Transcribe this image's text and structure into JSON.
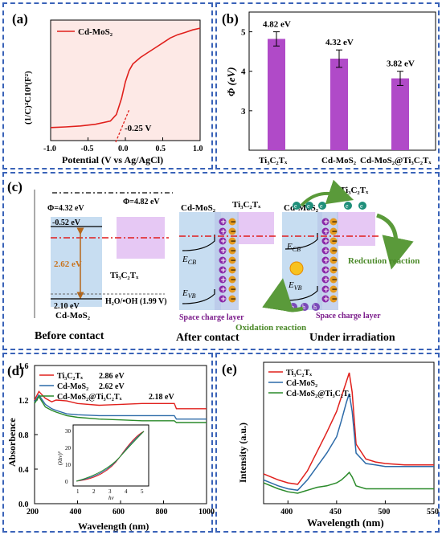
{
  "panel_a": {
    "letter": "(a)",
    "legend": "Cd-MoS₂",
    "ylabel": "(1/C)²C10⁹(F²)",
    "xlabel": "Potential (V vs Ag/AgCl)",
    "annotation": "-0.25 V",
    "xticks": [
      "-1.0",
      "-0.5",
      "0.0",
      "0.5",
      "1.0"
    ],
    "line_color": "#e0201c",
    "fill_color": "#fde9e6"
  },
  "panel_b": {
    "letter": "(b)",
    "ylabel": "Φ (eV)",
    "yticks": [
      "3",
      "4",
      "5"
    ],
    "bar_color": "#b04ac8",
    "value_labels": [
      "4.82 eV",
      "4.32 eV",
      "3.82 eV"
    ],
    "categories": [
      "Ti₃C₂Tₓ",
      "Cd-MoS₂",
      "Cd-MoS₂@Ti₃C₂Tₓ"
    ]
  },
  "panel_c": {
    "letter": "(c)",
    "phi1": "Φ=4.32 eV",
    "phi2": "Φ=4.82 eV",
    "cb": "-0.52 eV",
    "gap": "2.62 eV",
    "vb": "2.10 eV",
    "redox": "H₂O/•OH (1.99 V)",
    "mat1": "Cd-MoS₂",
    "mat2": "Ti₃C₂Tₓ",
    "ecb": "E",
    "ecb_sub": "CB",
    "evb": "E",
    "evb_sub": "VB",
    "scl": "Space charge layer",
    "reduction": "Redcution reaction",
    "oxidation": "Oxidation reaction",
    "stage1": "Before contact",
    "stage2": "After contact",
    "stage3": "Under irradiation",
    "h": "h",
    "e": "e"
  },
  "panel_d": {
    "letter": "(d)",
    "ylabel": "Absorbence",
    "xlabel": "Wavelength (nm)",
    "yticks": [
      "0.0",
      "0.4",
      "0.8",
      "1.2",
      "1.6"
    ],
    "xticks": [
      "200",
      "400",
      "600",
      "800",
      "1000"
    ],
    "legend": [
      {
        "name": "Ti₃C₂Tₓ",
        "gap": "2.86 eV",
        "color": "#e0201c"
      },
      {
        "name": "Cd-MoS₂",
        "gap": "2.62 eV",
        "color": "#2c6aa8"
      },
      {
        "name": "Cd-MoS₂@Ti₃C₂Tₓ",
        "gap": "2.18 eV",
        "color": "#2a8a2a"
      }
    ],
    "inset_ylabel": "(λhν)²",
    "inset_xlabel": "hν",
    "inset_yticks": [
      "0",
      "10",
      "20",
      "30"
    ],
    "inset_xticks": [
      "1",
      "2",
      "3",
      "4",
      "5"
    ]
  },
  "panel_e": {
    "letter": "(e)",
    "ylabel": "Intensity (a.u.)",
    "xlabel": "Wavelength (nm)",
    "xticks": [
      "400",
      "450",
      "500",
      "550"
    ],
    "legend": [
      {
        "name": "Ti₃C₂Tₓ",
        "color": "#e0201c"
      },
      {
        "name": "Cd-MoS₂",
        "color": "#2c6aa8"
      },
      {
        "name": "Cd-MoS₂@Ti₃C₂Tₓ",
        "color": "#2a8a2a"
      }
    ]
  },
  "chart_data": [
    {
      "type": "line",
      "title": "",
      "xlabel": "Potential (V vs Ag/AgCl)",
      "ylabel": "(1/C)²C10⁹(F²)",
      "xlim": [
        -1.0,
        1.0
      ],
      "series": [
        {
          "name": "Cd-MoS₂",
          "x": [
            -1.0,
            -0.8,
            -0.6,
            -0.4,
            -0.2,
            -0.12,
            -0.05,
            0.0,
            0.05,
            0.1,
            0.2,
            0.3,
            0.4,
            0.5,
            0.6,
            0.7,
            0.8,
            0.9,
            1.0
          ],
          "y": [
            1.2,
            1.22,
            1.25,
            1.3,
            1.4,
            1.6,
            2.1,
            2.6,
            2.95,
            3.15,
            3.35,
            3.5,
            3.65,
            3.8,
            3.95,
            4.05,
            4.12,
            4.2,
            4.25
          ]
        }
      ]
    },
    {
      "type": "bar",
      "title": "",
      "ylabel": "Φ (eV)",
      "ylim": [
        2,
        5.5
      ],
      "categories": [
        "Ti₃C₂Tₓ",
        "Cd-MoS₂",
        "Cd-MoS₂@Ti₃C₂Tₓ"
      ],
      "values": [
        4.82,
        4.32,
        3.82
      ],
      "errors": [
        0.18,
        0.22,
        0.18
      ]
    },
    {
      "type": "line",
      "title": "",
      "xlabel": "Wavelength (nm)",
      "ylabel": "Absorbence",
      "xlim": [
        200,
        1000
      ],
      "ylim": [
        0.0,
        1.6
      ],
      "series": [
        {
          "name": "Ti₃C₂Tₓ",
          "x": [
            200,
            220,
            250,
            280,
            300,
            350,
            400,
            500,
            600,
            700,
            800,
            850,
            860,
            900,
            1000
          ],
          "y": [
            1.2,
            1.3,
            1.22,
            1.18,
            1.2,
            1.19,
            1.16,
            1.14,
            1.15,
            1.16,
            1.16,
            1.16,
            1.1,
            1.1,
            1.1
          ]
        },
        {
          "name": "Cd-MoS₂",
          "x": [
            200,
            220,
            250,
            280,
            300,
            350,
            400,
            500,
            600,
            700,
            800,
            850,
            860,
            900,
            1000
          ],
          "y": [
            1.18,
            1.26,
            1.15,
            1.1,
            1.08,
            1.04,
            1.03,
            1.02,
            1.02,
            1.02,
            1.02,
            1.02,
            0.98,
            0.98,
            0.98
          ]
        },
        {
          "name": "Cd-MoS₂@Ti₃C₂Tₓ",
          "x": [
            200,
            220,
            250,
            280,
            300,
            350,
            400,
            500,
            600,
            700,
            800,
            850,
            860,
            900,
            1000
          ],
          "y": [
            1.16,
            1.24,
            1.12,
            1.08,
            1.06,
            1.02,
            1.0,
            0.98,
            0.97,
            0.96,
            0.96,
            0.96,
            0.94,
            0.94,
            0.94
          ]
        }
      ]
    },
    {
      "type": "line",
      "title": "",
      "xlabel": "Wavelength (nm)",
      "ylabel": "Intensity (a.u.)",
      "xlim": [
        375,
        550
      ],
      "series": [
        {
          "name": "Ti₃C₂Tₓ",
          "x": [
            375,
            390,
            400,
            410,
            420,
            430,
            440,
            450,
            455,
            460,
            463,
            466,
            470,
            480,
            490,
            500,
            520,
            550
          ],
          "y": [
            0.2,
            0.16,
            0.14,
            0.13,
            0.22,
            0.35,
            0.48,
            0.62,
            0.72,
            0.82,
            0.88,
            0.75,
            0.4,
            0.3,
            0.28,
            0.27,
            0.26,
            0.26
          ]
        },
        {
          "name": "Cd-MoS₂",
          "x": [
            375,
            390,
            400,
            410,
            420,
            430,
            440,
            450,
            455,
            460,
            463,
            466,
            470,
            480,
            490,
            500,
            520,
            550
          ],
          "y": [
            0.16,
            0.12,
            0.1,
            0.09,
            0.16,
            0.25,
            0.34,
            0.45,
            0.56,
            0.68,
            0.74,
            0.62,
            0.34,
            0.27,
            0.26,
            0.25,
            0.25,
            0.25
          ]
        },
        {
          "name": "Cd-MoS₂@Ti₃C₂Tₓ",
          "x": [
            375,
            390,
            400,
            410,
            420,
            430,
            440,
            450,
            455,
            460,
            463,
            466,
            470,
            480,
            490,
            500,
            520,
            550
          ],
          "y": [
            0.14,
            0.1,
            0.08,
            0.07,
            0.09,
            0.11,
            0.12,
            0.14,
            0.16,
            0.19,
            0.21,
            0.18,
            0.12,
            0.1,
            0.1,
            0.1,
            0.1,
            0.1
          ]
        }
      ]
    }
  ]
}
